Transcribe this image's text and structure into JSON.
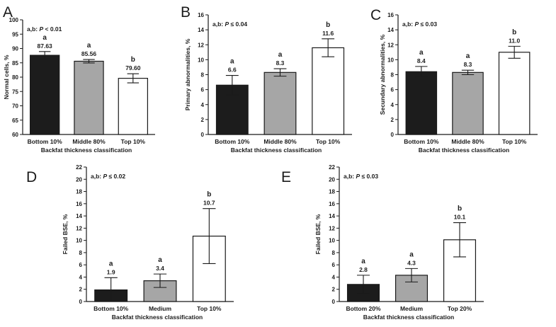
{
  "chart_data": [
    {
      "panel": "A",
      "type": "bar",
      "categories": [
        "Bottom 10%",
        "Middle 80%",
        "Top 10%"
      ],
      "values": [
        87.63,
        85.56,
        79.6
      ],
      "value_labels": [
        "87.63",
        "85.56",
        "79.60"
      ],
      "error": [
        1.3,
        0.6,
        1.6
      ],
      "sig_letters": [
        "a",
        "a",
        "b"
      ],
      "bar_colors": [
        "#1c1c1c",
        "#a6a6a6",
        "#ffffff"
      ],
      "ylim": [
        60,
        100
      ],
      "ytick_step": 5,
      "yticks": [
        "60",
        "65",
        "70",
        "75",
        "80",
        "85",
        "90",
        "95",
        "100"
      ],
      "ylabel": "Normal cells, %",
      "xlabel": "Backfat thickness classification",
      "annotation_prefix": "a,b: ",
      "annotation_p": "P",
      "annotation_suffix": " < 0.01"
    },
    {
      "panel": "B",
      "type": "bar",
      "categories": [
        "Bottom 10%",
        "Middle 80%",
        "Top 10%"
      ],
      "values": [
        6.6,
        8.3,
        11.6
      ],
      "value_labels": [
        "6.6",
        "8.3",
        "11.6"
      ],
      "error": [
        1.3,
        0.5,
        1.2
      ],
      "sig_letters": [
        "a",
        "a",
        "b"
      ],
      "bar_colors": [
        "#1c1c1c",
        "#a6a6a6",
        "#ffffff"
      ],
      "ylim": [
        0,
        16
      ],
      "ytick_step": 2,
      "yticks": [
        "0",
        "2",
        "4",
        "6",
        "8",
        "10",
        "12",
        "14",
        "16"
      ],
      "ylabel": "Primary abnormalities, %",
      "xlabel": "Backfat thickness classification",
      "annotation_prefix": "a,b: ",
      "annotation_p": "P",
      "annotation_suffix": " ≤ 0.04"
    },
    {
      "panel": "C",
      "type": "bar",
      "categories": [
        "Bottom 10%",
        "Middle 80%",
        "Top 10%"
      ],
      "values": [
        8.4,
        8.3,
        11.0
      ],
      "value_labels": [
        "8.4",
        "8.3",
        "11.0"
      ],
      "error": [
        0.7,
        0.3,
        0.8
      ],
      "sig_letters": [
        "a",
        "a",
        "b"
      ],
      "bar_colors": [
        "#1c1c1c",
        "#a6a6a6",
        "#ffffff"
      ],
      "ylim": [
        0,
        16
      ],
      "ytick_step": 2,
      "yticks": [
        "0",
        "2",
        "4",
        "6",
        "8",
        "10",
        "12",
        "14",
        "16"
      ],
      "ylabel": "Secundary abnormalities, %",
      "xlabel": "Backfat thickness classification",
      "annotation_prefix": "a,b: ",
      "annotation_p": "P",
      "annotation_suffix": " ≤ 0.03"
    },
    {
      "panel": "D",
      "type": "bar",
      "categories": [
        "Bottom 10%",
        "Medium",
        "Top 10%"
      ],
      "values": [
        1.9,
        3.4,
        10.7
      ],
      "value_labels": [
        "1.9",
        "3.4",
        "10.7"
      ],
      "error": [
        2.0,
        1.1,
        4.5
      ],
      "sig_letters": [
        "a",
        "a",
        "b"
      ],
      "bar_colors": [
        "#1c1c1c",
        "#a6a6a6",
        "#ffffff"
      ],
      "ylim": [
        0,
        22
      ],
      "ytick_step": 2,
      "yticks": [
        "0",
        "2",
        "4",
        "6",
        "8",
        "10",
        "12",
        "14",
        "16",
        "18",
        "20",
        "22"
      ],
      "ylabel": "Failed BSE, %",
      "xlabel": "Backfat thickness classification",
      "annotation_prefix": "a,b: ",
      "annotation_p": "P",
      "annotation_suffix": " ≤ 0.02"
    },
    {
      "panel": "E",
      "type": "bar",
      "categories": [
        "Bottom 20%",
        "Medium",
        "Top 20%"
      ],
      "values": [
        2.8,
        4.3,
        10.1
      ],
      "value_labels": [
        "2.8",
        "4.3",
        "10.1"
      ],
      "error": [
        1.5,
        1.1,
        2.8
      ],
      "sig_letters": [
        "a",
        "a",
        "b"
      ],
      "bar_colors": [
        "#1c1c1c",
        "#a6a6a6",
        "#ffffff"
      ],
      "ylim": [
        0,
        22
      ],
      "ytick_step": 2,
      "yticks": [
        "0",
        "2",
        "4",
        "6",
        "8",
        "10",
        "12",
        "14",
        "16",
        "18",
        "20",
        "22"
      ],
      "ylabel": "Failed BSE, %",
      "xlabel": "Backfat thickness classification",
      "annotation_prefix": "a,b: ",
      "annotation_p": "P",
      "annotation_suffix": " ≤ 0.03"
    }
  ]
}
